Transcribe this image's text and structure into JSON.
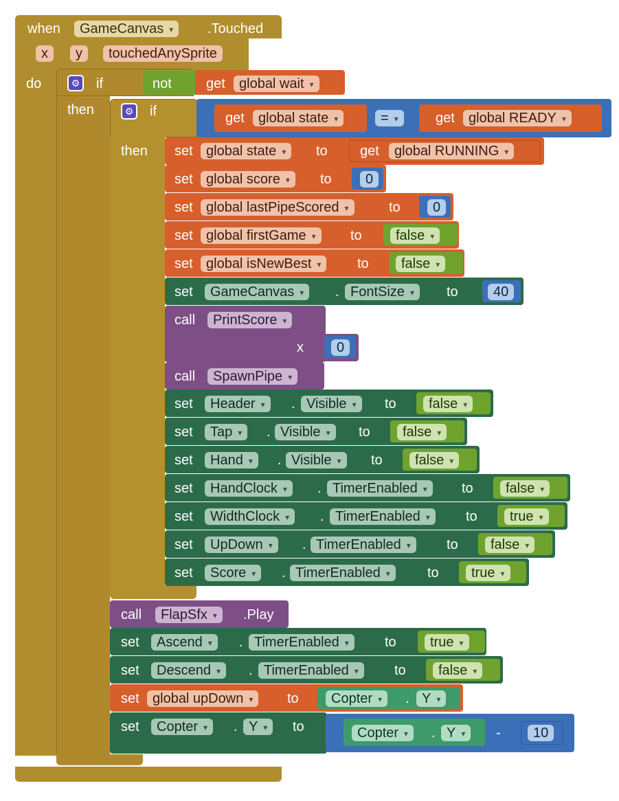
{
  "event": {
    "when": "when",
    "component": "GameCanvas",
    "event_name": ".Touched",
    "params": [
      "x",
      "y",
      "touchedAnySprite"
    ],
    "do": "do"
  },
  "if1": {
    "label": "if",
    "then": "then",
    "not": "not",
    "get": "get",
    "var": "global wait"
  },
  "if2": {
    "label": "if",
    "then": "then",
    "get1": "get",
    "var1": "global state",
    "op": "=",
    "get2": "get",
    "var2": "global READY"
  },
  "kw": {
    "set": "set",
    "to": "to",
    "get": "get",
    "call": "call",
    "dot": ".",
    "minus": "-",
    "x": "x"
  },
  "inner": {
    "state": {
      "var": "global state",
      "value": "global RUNNING"
    },
    "score": {
      "var": "global score",
      "value": "0"
    },
    "lastPipe": {
      "var": "global lastPipeScored",
      "value": "0"
    },
    "firstGame": {
      "var": "global firstGame",
      "value": "false"
    },
    "isNewBest": {
      "var": "global isNewBest",
      "value": "false"
    },
    "fontSize": {
      "component": "GameCanvas",
      "property": "FontSize",
      "value": "40"
    },
    "printScore": {
      "proc": "PrintScore",
      "arg_label": "x",
      "arg": "0"
    },
    "spawnPipe": {
      "proc": "SpawnPipe"
    },
    "header": {
      "component": "Header",
      "property": "Visible",
      "value": "false"
    },
    "tap": {
      "component": "Tap",
      "property": "Visible",
      "value": "false"
    },
    "hand": {
      "component": "Hand",
      "property": "Visible",
      "value": "false"
    },
    "handClock": {
      "component": "HandClock",
      "property": "TimerEnabled",
      "value": "false"
    },
    "widthClock": {
      "component": "WidthClock",
      "property": "TimerEnabled",
      "value": "true"
    },
    "upDown": {
      "component": "UpDown",
      "property": "TimerEnabled",
      "value": "false"
    },
    "scoreT": {
      "component": "Score",
      "property": "TimerEnabled",
      "value": "true"
    }
  },
  "outer": {
    "flap": {
      "component": "FlapSfx",
      "method": ".Play"
    },
    "ascend": {
      "component": "Ascend",
      "property": "TimerEnabled",
      "value": "true"
    },
    "descend": {
      "component": "Descend",
      "property": "TimerEnabled",
      "value": "false"
    },
    "updown": {
      "var": "global upDown",
      "component": "Copter",
      "property": "Y"
    },
    "copter": {
      "component": "Copter",
      "property": "Y",
      "src_component": "Copter",
      "src_property": "Y",
      "minus": "-",
      "value": "10"
    }
  },
  "colors": {
    "event": "#b08d2e",
    "control": "#b1892d",
    "variable": "#d75f2b",
    "component_setter": "#2b6b49",
    "procedure": "#7e4f86",
    "math": "#3b70b9",
    "logic": "#6fa32e",
    "component_getter": "#3e9a6a"
  },
  "icons": {
    "mutator": "gear-icon"
  }
}
